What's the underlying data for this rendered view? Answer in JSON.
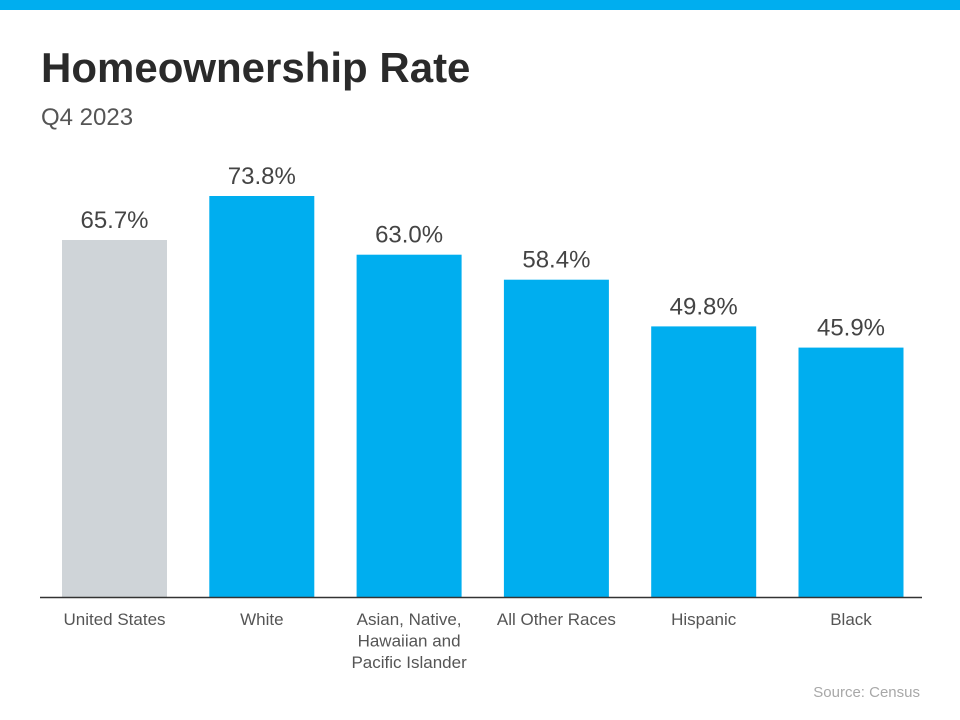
{
  "header": {
    "title": "Homeownership Rate",
    "subtitle": "Q4 2023"
  },
  "colors": {
    "accent": "#00aeef",
    "baseline_bar": "#cfd4d8",
    "axis": "#333333",
    "value_label": "#444444",
    "category_label": "#555555"
  },
  "chart_data": {
    "type": "bar",
    "title": "Homeownership Rate",
    "subtitle": "Q4 2023",
    "categories": [
      "United States",
      "White",
      "Asian, Native, Hawaiian and Pacific Islander",
      "All Other Races",
      "Hispanic",
      "Black"
    ],
    "category_lines": [
      [
        "United States"
      ],
      [
        "White"
      ],
      [
        "Asian, Native,",
        "Hawaiian and",
        "Pacific Islander"
      ],
      [
        "All Other Races"
      ],
      [
        "Hispanic"
      ],
      [
        "Black"
      ]
    ],
    "values": [
      65.7,
      73.8,
      63.0,
      58.4,
      49.8,
      45.9
    ],
    "value_labels": [
      "65.7%",
      "73.8%",
      "63.0%",
      "58.4%",
      "49.8%",
      "45.9%"
    ],
    "highlight": [
      "baseline",
      "accent",
      "accent",
      "accent",
      "accent",
      "accent"
    ],
    "xlabel": "",
    "ylabel": "",
    "ylim": [
      0,
      83
    ],
    "grid": false,
    "legend": "none"
  },
  "footer": {
    "source": "Source: Census"
  }
}
